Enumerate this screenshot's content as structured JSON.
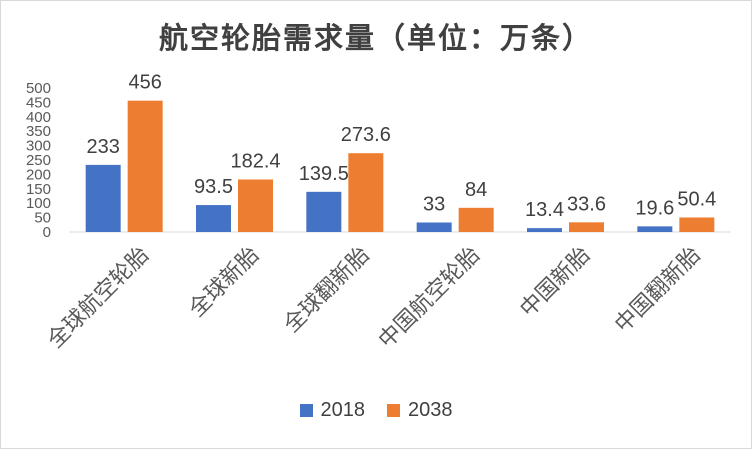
{
  "chart_data": {
    "type": "bar",
    "title": "航空轮胎需求量（单位：万条）",
    "categories": [
      "全球航空轮胎",
      "全球新胎",
      "全球翻新胎",
      "中国航空轮胎",
      "中国新胎",
      "中国翻新胎"
    ],
    "series": [
      {
        "name": "2018",
        "values": [
          233,
          93.5,
          139.5,
          33,
          13.4,
          19.6
        ],
        "labels": [
          "233",
          "93.5",
          "139.5",
          "33",
          "13.4",
          "19.6"
        ],
        "color": "#4472c4"
      },
      {
        "name": "2038",
        "values": [
          456,
          182.4,
          273.6,
          84,
          33.6,
          50.4
        ],
        "labels": [
          "456",
          "182.4",
          "273.6",
          "84",
          "33.6",
          "50.4"
        ],
        "color": "#ed7d31"
      }
    ],
    "ylim": [
      0,
      500
    ],
    "yticks": [
      "0",
      "50",
      "100",
      "150",
      "200",
      "250",
      "300",
      "350",
      "400",
      "450",
      "500"
    ],
    "xlabel": "",
    "ylabel": "",
    "grid": false,
    "legend": "bottom"
  }
}
